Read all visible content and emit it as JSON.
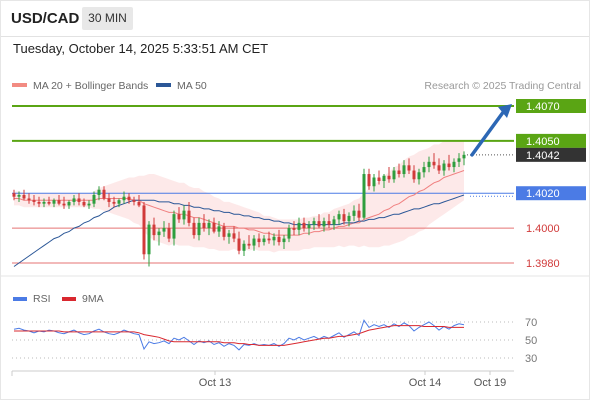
{
  "header": {
    "symbol": "USD/CAD",
    "timeframe": "30 MIN"
  },
  "datetime": "Tuesday, October 14, 2025 5:33:51 AM CET",
  "legend": {
    "ma20": {
      "label": "MA 20 + Bollinger Bands",
      "color": "#f28b82"
    },
    "ma50": {
      "label": "MA 50",
      "color": "#2b5797"
    }
  },
  "source": "Research © 2025 Trading Central",
  "colors": {
    "up": "#2e9e3e",
    "down": "#d13a3a",
    "resistance": "#5aa514",
    "support": "#e57373",
    "pivot": "#4b7be5",
    "arrow": "#2c67b5",
    "current": "#333333"
  },
  "icons": {
    "arrow": "arrow-up-right-icon"
  },
  "chart_data": [
    {
      "type": "candlestick",
      "title": "USD/CAD 30 MIN",
      "x_labels": [
        "Oct 13",
        "Oct 14",
        "Oct 19"
      ],
      "current_price": "1.4042",
      "levels": [
        {
          "label": "1.4070",
          "value": 1.407,
          "kind": "resistance"
        },
        {
          "label": "1.4050",
          "value": 1.405,
          "kind": "resistance"
        },
        {
          "label": "1.4020",
          "value": 1.402,
          "kind": "pivot"
        },
        {
          "label": "1.4000",
          "value": 1.4,
          "kind": "support"
        },
        {
          "label": "1.3980",
          "value": 1.398,
          "kind": "support"
        }
      ],
      "forecast": {
        "from": 1.4042,
        "to": 1.407,
        "direction": "up"
      },
      "candles": [
        [
          1.402,
          1.4022,
          1.4016,
          1.4018
        ],
        [
          1.4018,
          1.4021,
          1.4015,
          1.4019
        ],
        [
          1.4019,
          1.4022,
          1.4016,
          1.4017
        ],
        [
          1.4017,
          1.402,
          1.4014,
          1.4016
        ],
        [
          1.4016,
          1.4019,
          1.4013,
          1.4015
        ],
        [
          1.4015,
          1.4018,
          1.4012,
          1.4014
        ],
        [
          1.4014,
          1.4017,
          1.4012,
          1.4015
        ],
        [
          1.4015,
          1.4018,
          1.4013,
          1.4014
        ],
        [
          1.4014,
          1.4017,
          1.4012,
          1.4016
        ],
        [
          1.4016,
          1.4019,
          1.4013,
          1.4014
        ],
        [
          1.4014,
          1.4018,
          1.4011,
          1.4013
        ],
        [
          1.4013,
          1.4016,
          1.4011,
          1.4015
        ],
        [
          1.4015,
          1.4019,
          1.4013,
          1.4017
        ],
        [
          1.4017,
          1.402,
          1.4013,
          1.4015
        ],
        [
          1.4015,
          1.4017,
          1.4012,
          1.4013
        ],
        [
          1.4013,
          1.4016,
          1.4011,
          1.4014
        ],
        [
          1.4014,
          1.4021,
          1.4012,
          1.4019
        ],
        [
          1.4019,
          1.4024,
          1.4016,
          1.4022
        ],
        [
          1.4022,
          1.4024,
          1.4016,
          1.4017
        ],
        [
          1.4017,
          1.402,
          1.4012,
          1.4015
        ],
        [
          1.4015,
          1.4018,
          1.4012,
          1.4014
        ],
        [
          1.4014,
          1.4017,
          1.4012,
          1.4016
        ],
        [
          1.4016,
          1.4021,
          1.4014,
          1.4018
        ],
        [
          1.4018,
          1.402,
          1.4014,
          1.4016
        ],
        [
          1.4016,
          1.4018,
          1.4013,
          1.4015
        ],
        [
          1.4015,
          1.4019,
          1.4012,
          1.4013
        ],
        [
          1.4013,
          1.4015,
          1.3982,
          1.3985
        ],
        [
          1.3985,
          1.4004,
          1.3978,
          1.4002
        ],
        [
          1.4002,
          1.4006,
          1.3993,
          1.3996
        ],
        [
          1.3996,
          1.4,
          1.399,
          1.3998
        ],
        [
          1.3998,
          1.4004,
          1.3995,
          1.4
        ],
        [
          1.4,
          1.4003,
          1.3992,
          1.3994
        ],
        [
          1.3994,
          1.401,
          1.399,
          1.4008
        ],
        [
          1.4008,
          1.4012,
          1.4003,
          1.4005
        ],
        [
          1.4005,
          1.4013,
          1.4002,
          1.401
        ],
        [
          1.401,
          1.4015,
          1.4001,
          1.4003
        ],
        [
          1.4003,
          1.4006,
          1.3994,
          1.3996
        ],
        [
          1.3996,
          1.4006,
          1.3993,
          1.4003
        ],
        [
          1.4003,
          1.4008,
          1.3998,
          1.4
        ],
        [
          1.4,
          1.4005,
          1.3996,
          1.4003
        ],
        [
          1.4003,
          1.4006,
          1.3997,
          1.3998
        ],
        [
          1.3998,
          1.4004,
          1.3995,
          1.4001
        ],
        [
          1.4001,
          1.4003,
          1.3993,
          1.3995
        ],
        [
          1.3995,
          1.3999,
          1.3991,
          1.3997
        ],
        [
          1.3997,
          1.4001,
          1.3992,
          1.3994
        ],
        [
          1.3994,
          1.3998,
          1.3985,
          1.3987
        ],
        [
          1.3987,
          1.3993,
          1.3984,
          1.3991
        ],
        [
          1.3991,
          1.3996,
          1.3988,
          1.399
        ],
        [
          1.399,
          1.3996,
          1.3987,
          1.3994
        ],
        [
          1.3994,
          1.3997,
          1.3989,
          1.3992
        ],
        [
          1.3992,
          1.3996,
          1.399,
          1.3994
        ],
        [
          1.3994,
          1.3998,
          1.3991,
          1.3993
        ],
        [
          1.3993,
          1.3997,
          1.399,
          1.3995
        ],
        [
          1.3995,
          1.3999,
          1.399,
          1.3992
        ],
        [
          1.3992,
          1.3996,
          1.3988,
          1.3994
        ],
        [
          1.3994,
          1.4002,
          1.3992,
          1.4
        ],
        [
          1.4,
          1.4004,
          1.3996,
          1.3999
        ],
        [
          1.3999,
          1.4006,
          1.3996,
          1.4003
        ],
        [
          1.4003,
          1.4006,
          1.3998,
          1.4
        ],
        [
          1.4,
          1.4004,
          1.3996,
          1.4002
        ],
        [
          1.4002,
          1.4006,
          1.3999,
          1.4004
        ],
        [
          1.4004,
          1.4008,
          1.4,
          1.4001
        ],
        [
          1.4001,
          1.4006,
          1.3998,
          1.4004
        ],
        [
          1.4004,
          1.4008,
          1.4,
          1.4002
        ],
        [
          1.4002,
          1.4007,
          1.3999,
          1.4005
        ],
        [
          1.4005,
          1.401,
          1.4002,
          1.4008
        ],
        [
          1.4008,
          1.4011,
          1.4002,
          1.4004
        ],
        [
          1.4004,
          1.4009,
          1.4001,
          1.4007
        ],
        [
          1.4007,
          1.4013,
          1.4004,
          1.401
        ],
        [
          1.401,
          1.4014,
          1.4004,
          1.4006
        ],
        [
          1.4006,
          1.4034,
          1.4005,
          1.4031
        ],
        [
          1.4031,
          1.4034,
          1.4022,
          1.4024
        ],
        [
          1.4024,
          1.4031,
          1.4021,
          1.4029
        ],
        [
          1.4029,
          1.4033,
          1.4025,
          1.4027
        ],
        [
          1.4027,
          1.4031,
          1.4023,
          1.403
        ],
        [
          1.403,
          1.4035,
          1.4026,
          1.4028
        ],
        [
          1.4028,
          1.4035,
          1.4026,
          1.4033
        ],
        [
          1.4033,
          1.4037,
          1.4029,
          1.4031
        ],
        [
          1.4031,
          1.4039,
          1.4029,
          1.4036
        ],
        [
          1.4036,
          1.404,
          1.4031,
          1.4033
        ],
        [
          1.4033,
          1.4036,
          1.4026,
          1.4028
        ],
        [
          1.4028,
          1.4034,
          1.4025,
          1.4032
        ],
        [
          1.4032,
          1.4038,
          1.4029,
          1.4035
        ],
        [
          1.4035,
          1.4041,
          1.4032,
          1.4038
        ],
        [
          1.4038,
          1.4043,
          1.4034,
          1.4036
        ],
        [
          1.4036,
          1.404,
          1.4031,
          1.4033
        ],
        [
          1.4033,
          1.4039,
          1.403,
          1.4037
        ],
        [
          1.4037,
          1.4042,
          1.4033,
          1.4035
        ],
        [
          1.4035,
          1.404,
          1.4032,
          1.4038
        ],
        [
          1.4038,
          1.4043,
          1.4035,
          1.404
        ],
        [
          1.404,
          1.4044,
          1.4036,
          1.4042
        ]
      ],
      "ma20": [
        1.4017,
        1.4017,
        1.4016,
        1.4016,
        1.4016,
        1.4016,
        1.4016,
        1.4016,
        1.4016,
        1.4016,
        1.4016,
        1.4016,
        1.4016,
        1.4016,
        1.4016,
        1.4016,
        1.4016,
        1.4017,
        1.4017,
        1.4017,
        1.4017,
        1.4017,
        1.4017,
        1.4017,
        1.4016,
        1.4016,
        1.4014,
        1.4013,
        1.4012,
        1.4011,
        1.401,
        1.4009,
        1.4009,
        1.4008,
        1.4008,
        1.4007,
        1.4006,
        1.4006,
        1.4005,
        1.4004,
        1.4003,
        1.4002,
        1.4001,
        1.4001,
        1.4001,
        1.4,
        1.4,
        1.3999,
        1.3999,
        1.3998,
        1.3997,
        1.3997,
        1.3996,
        1.3996,
        1.3996,
        1.3996,
        1.3996,
        1.3996,
        1.3997,
        1.3997,
        1.3998,
        1.3998,
        1.3999,
        1.3999,
        1.4,
        1.4001,
        1.4001,
        1.4002,
        1.4003,
        1.4003,
        1.4005,
        1.4006,
        1.4007,
        1.4008,
        1.401,
        1.4011,
        1.4013,
        1.4014,
        1.4016,
        1.4018,
        1.4019,
        1.4021,
        1.4022,
        1.4024,
        1.4026,
        1.4027,
        1.4029,
        1.403,
        1.4031,
        1.4032,
        1.4033
      ],
      "ma50": [
        1.3978,
        1.398,
        1.3982,
        1.3984,
        1.3986,
        1.3988,
        1.399,
        1.3992,
        1.3994,
        1.3995,
        1.3997,
        1.3998,
        1.4,
        1.4001,
        1.4003,
        1.4004,
        1.4006,
        1.4007,
        1.4009,
        1.401,
        1.4012,
        1.4013,
        1.4014,
        1.4015,
        1.4016,
        1.4016,
        1.4016,
        1.4016,
        1.4016,
        1.4015,
        1.4015,
        1.4015,
        1.4014,
        1.4014,
        1.4013,
        1.4013,
        1.4012,
        1.4012,
        1.4011,
        1.4011,
        1.401,
        1.401,
        1.4009,
        1.4009,
        1.4008,
        1.4008,
        1.4007,
        1.4007,
        1.4006,
        1.4006,
        1.4005,
        1.4005,
        1.4004,
        1.4004,
        1.4003,
        1.4003,
        1.4002,
        1.4002,
        1.4002,
        1.4002,
        1.4002,
        1.4002,
        1.4002,
        1.4002,
        1.4002,
        1.4002,
        1.4003,
        1.4003,
        1.4003,
        1.4004,
        1.4004,
        1.4005,
        1.4005,
        1.4006,
        1.4006,
        1.4007,
        1.4008,
        1.4008,
        1.4009,
        1.401,
        1.4011,
        1.4011,
        1.4012,
        1.4013,
        1.4014,
        1.4014,
        1.4015,
        1.4016,
        1.4017,
        1.4018,
        1.4019
      ],
      "bb_width": [
        0.0004,
        0.0004,
        0.0004,
        0.0004,
        0.0004,
        0.0004,
        0.0004,
        0.0004,
        0.0004,
        0.0004,
        0.0004,
        0.0004,
        0.0004,
        0.0004,
        0.0004,
        0.0004,
        0.0005,
        0.0006,
        0.0007,
        0.0008,
        0.0009,
        0.001,
        0.0011,
        0.0012,
        0.0013,
        0.0014,
        0.0016,
        0.0018,
        0.0019,
        0.0019,
        0.0019,
        0.0019,
        0.0018,
        0.0018,
        0.0018,
        0.0017,
        0.0017,
        0.0017,
        0.0016,
        0.0016,
        0.0015,
        0.0015,
        0.0014,
        0.0014,
        0.0013,
        0.0013,
        0.0012,
        0.0012,
        0.0011,
        0.0011,
        0.001,
        0.001,
        0.001,
        0.0009,
        0.0009,
        0.0009,
        0.0009,
        0.0009,
        0.0009,
        0.0009,
        0.0009,
        0.0009,
        0.001,
        0.001,
        0.0011,
        0.0011,
        0.0012,
        0.0012,
        0.0013,
        0.0014,
        0.0015,
        0.0017,
        0.0018,
        0.0019,
        0.002,
        0.0021,
        0.0022,
        0.0022,
        0.0023,
        0.0023,
        0.0023,
        0.0023,
        0.0023,
        0.0022,
        0.0022,
        0.0021,
        0.0021,
        0.002,
        0.0019,
        0.0018,
        0.0017
      ]
    },
    {
      "type": "line",
      "title": "RSI",
      "series": [
        {
          "name": "RSI",
          "color": "#4b7be5",
          "values": [
            62,
            63,
            61,
            60,
            58,
            60,
            59,
            61,
            60,
            58,
            57,
            59,
            61,
            58,
            56,
            57,
            60,
            62,
            59,
            57,
            56,
            58,
            61,
            59,
            57,
            56,
            40,
            48,
            46,
            47,
            49,
            46,
            52,
            50,
            53,
            49,
            45,
            49,
            47,
            49,
            45,
            47,
            43,
            46,
            44,
            39,
            45,
            44,
            46,
            44,
            45,
            44,
            46,
            43,
            46,
            52,
            50,
            53,
            50,
            52,
            54,
            51,
            54,
            52,
            55,
            58,
            53,
            56,
            59,
            55,
            72,
            64,
            67,
            65,
            67,
            64,
            68,
            65,
            69,
            66,
            60,
            64,
            67,
            70,
            66,
            61,
            65,
            62,
            66,
            68,
            67
          ]
        },
        {
          "name": "9MA",
          "color": "#d9282f",
          "values": [
            60,
            60,
            60,
            60,
            60,
            60,
            60,
            60,
            60,
            60,
            59,
            59,
            59,
            59,
            59,
            59,
            59,
            59,
            59,
            59,
            59,
            59,
            59,
            59,
            59,
            58,
            56,
            55,
            54,
            53,
            51,
            49,
            48,
            48,
            48,
            48,
            48,
            48,
            48,
            48,
            48,
            48,
            47,
            47,
            47,
            46,
            46,
            45,
            45,
            44,
            44,
            44,
            44,
            44,
            44,
            45,
            46,
            47,
            48,
            49,
            50,
            51,
            52,
            52,
            53,
            54,
            54,
            55,
            56,
            57,
            59,
            61,
            62,
            63,
            64,
            65,
            66,
            66,
            66,
            66,
            66,
            66,
            65,
            65,
            65,
            65,
            65,
            64,
            64,
            64,
            64
          ]
        }
      ],
      "yticks": [
        "70",
        "50",
        "30"
      ],
      "ylim": [
        20,
        80
      ]
    }
  ]
}
